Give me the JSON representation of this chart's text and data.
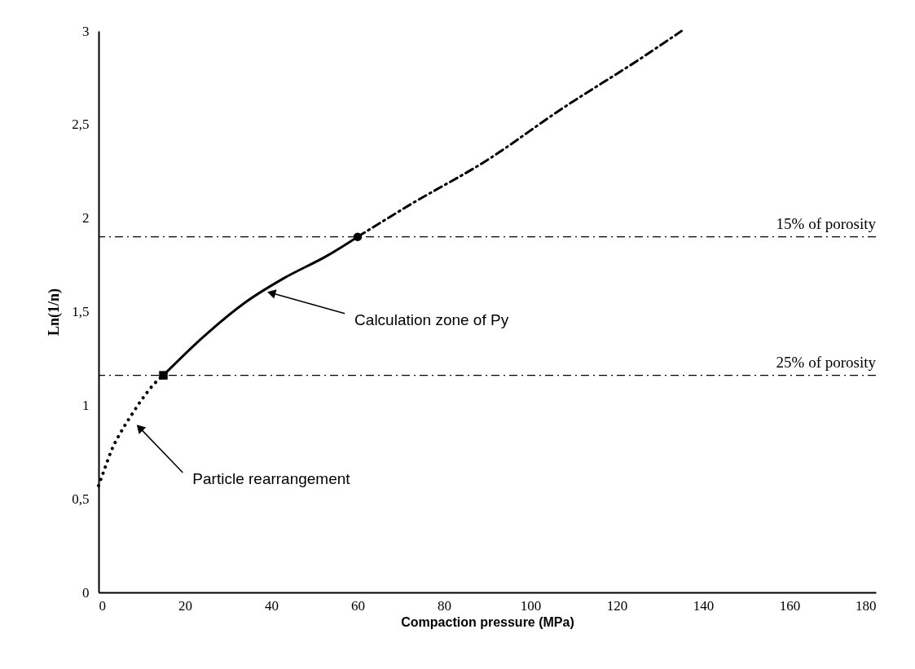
{
  "chart_data": {
    "type": "line",
    "xlabel": "Compaction pressure (MPa)",
    "ylabel": "Ln(1/n)",
    "xlim": [
      0,
      180
    ],
    "xticks": [
      0,
      20,
      40,
      60,
      80,
      100,
      120,
      140,
      160,
      180
    ],
    "ylim": [
      0,
      3
    ],
    "yticks": [
      0,
      {
        "value": 0.5,
        "label": "0,5"
      },
      1,
      {
        "value": 1.5,
        "label": "1,5"
      },
      2,
      {
        "value": 2.5,
        "label": "2,5"
      },
      3
    ],
    "series": [
      {
        "line_style": "dotted",
        "color": "#000000",
        "x": [
          0,
          1.4,
          3,
          5,
          7.4,
          10,
          12.7,
          15
        ],
        "values": [
          0.57,
          0.66,
          0.76,
          0.85,
          0.94,
          1.03,
          1.11,
          1.16
        ]
      },
      {
        "line_style": "solid",
        "color": "#000000",
        "x": [
          15,
          24,
          34,
          43,
          53,
          60
        ],
        "values": [
          1.16,
          1.36,
          1.55,
          1.68,
          1.8,
          1.9
        ]
      },
      {
        "line_style": "dashed",
        "color": "#000000",
        "x": [
          60,
          72,
          90,
          107,
          126,
          135
        ],
        "values": [
          1.9,
          2.07,
          2.31,
          2.58,
          2.86,
          3
        ]
      },
      {
        "type": "scatter",
        "marker": "square",
        "color": "#000000",
        "x": [
          15
        ],
        "values": [
          1.16
        ]
      },
      {
        "type": "scatter",
        "marker": "circle",
        "color": "#000000",
        "x": [
          60
        ],
        "values": [
          1.9
        ]
      }
    ],
    "ref_lines": [
      {
        "axis": "y",
        "value": 1.9,
        "label": "15% of porosity",
        "line_style": "dashed",
        "color": "#000000"
      },
      {
        "axis": "y",
        "value": 1.16,
        "label": "25% of porosity",
        "line_style": "dashed",
        "color": "#000000"
      }
    ],
    "annotations": [
      {
        "text": "Calculation zone of Py",
        "x": 40,
        "y": 1.6
      },
      {
        "text": "Particle rearrangement",
        "x": 9.5,
        "y": 0.88
      }
    ]
  }
}
